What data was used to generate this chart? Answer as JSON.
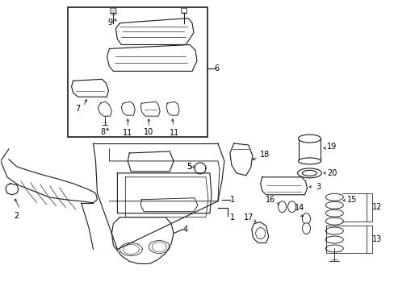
{
  "bg_color": "#ffffff",
  "fig_width": 4.89,
  "fig_height": 3.6,
  "dpi": 100,
  "line_color": "#1a1a1a",
  "text_color": "#000000",
  "line_width": 0.8
}
